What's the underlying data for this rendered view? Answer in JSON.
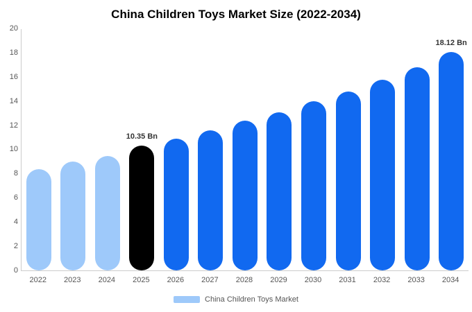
{
  "title": "China Children Toys Market Size (2022-2034)",
  "legend": {
    "label": "China Children Toys Market",
    "swatch_color": "#9ec9fa"
  },
  "chart_data": {
    "type": "bar",
    "title": "China Children Toys Market Size (2022-2034)",
    "categories": [
      "2022",
      "2023",
      "2024",
      "2025",
      "2026",
      "2027",
      "2028",
      "2029",
      "2030",
      "2031",
      "2032",
      "2033",
      "2034"
    ],
    "values": [
      8.4,
      9.0,
      9.5,
      10.35,
      10.9,
      11.6,
      12.4,
      13.1,
      14.0,
      14.85,
      15.8,
      16.85,
      18.12
    ],
    "bar_colors": [
      "#9ec9fa",
      "#9ec9fa",
      "#9ec9fa",
      "#000000",
      "#1169f0",
      "#1169f0",
      "#1169f0",
      "#1169f0",
      "#1169f0",
      "#1169f0",
      "#1169f0",
      "#1169f0",
      "#1169f0"
    ],
    "annotations": [
      {
        "index": 3,
        "text": "10.35 Bn"
      },
      {
        "index": 12,
        "text": "18.12 Bn"
      }
    ],
    "xlabel": "",
    "ylabel": "",
    "ylim": [
      0,
      20
    ],
    "yticks": [
      0,
      2,
      4,
      6,
      8,
      10,
      12,
      14,
      16,
      18,
      20
    ],
    "grid": false,
    "legend_position": "bottom"
  }
}
